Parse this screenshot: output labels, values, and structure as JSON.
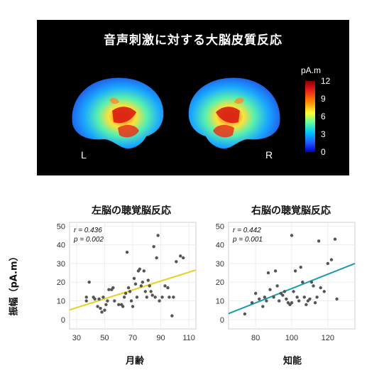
{
  "panel": {
    "title": "音声刺激に対する大脳皮質反応",
    "left_label": "L",
    "right_label": "R",
    "colorbar": {
      "unit": "pA.m",
      "ticks": [
        "12",
        "9",
        "6",
        "3",
        "0"
      ],
      "min": 0,
      "max": 12
    }
  },
  "chart_data": [
    {
      "type": "scatter",
      "title": "左脳の聴覚脳反応",
      "xlabel": "月齢",
      "ylabel": "振幅（pA.m）",
      "xlim": [
        25,
        115
      ],
      "ylim": [
        -5,
        52
      ],
      "xticks": [
        30,
        50,
        70,
        90,
        110
      ],
      "yticks": [
        0,
        10,
        20,
        30,
        40,
        50
      ],
      "stats": {
        "r": "r = 0.436",
        "p": "p = 0.002"
      },
      "line_color": "#e5d21f",
      "fit": {
        "x": [
          25,
          115
        ],
        "y": [
          5.2,
          26.5
        ]
      },
      "points": [
        [
          37,
          10
        ],
        [
          37,
          12
        ],
        [
          39,
          20
        ],
        [
          42,
          12
        ],
        [
          43,
          11
        ],
        [
          45,
          7
        ],
        [
          46,
          11
        ],
        [
          47,
          6
        ],
        [
          48,
          4
        ],
        [
          49,
          12
        ],
        [
          50,
          5
        ],
        [
          51,
          8
        ],
        [
          52,
          10
        ],
        [
          53,
          16
        ],
        [
          55,
          16
        ],
        [
          56,
          17
        ],
        [
          57,
          10
        ],
        [
          60,
          8
        ],
        [
          62,
          8
        ],
        [
          63,
          7
        ],
        [
          64,
          12
        ],
        [
          65,
          14
        ],
        [
          66,
          36
        ],
        [
          67,
          17
        ],
        [
          68,
          15
        ],
        [
          69,
          10
        ],
        [
          70,
          7
        ],
        [
          71,
          22
        ],
        [
          72,
          19
        ],
        [
          73,
          12
        ],
        [
          74,
          26
        ],
        [
          75,
          27
        ],
        [
          76,
          18
        ],
        [
          77,
          20
        ],
        [
          78,
          26
        ],
        [
          79,
          15
        ],
        [
          80,
          12
        ],
        [
          81,
          21
        ],
        [
          82,
          18
        ],
        [
          83,
          15
        ],
        [
          84,
          13
        ],
        [
          85,
          39
        ],
        [
          86,
          12
        ],
        [
          87,
          33
        ],
        [
          88,
          45
        ],
        [
          89,
          10
        ],
        [
          91,
          12
        ],
        [
          93,
          18
        ],
        [
          95,
          17
        ],
        [
          96,
          12
        ],
        [
          98,
          2
        ],
        [
          99,
          12
        ],
        [
          101,
          31
        ],
        [
          104,
          34
        ],
        [
          106,
          33
        ]
      ]
    },
    {
      "type": "scatter",
      "title": "右脳の聴覚脳反応",
      "xlabel": "知能",
      "ylabel": "",
      "xlim": [
        65,
        135
      ],
      "ylim": [
        -5,
        52
      ],
      "xticks": [
        80,
        100,
        120
      ],
      "yticks": [
        0,
        10,
        20,
        30,
        40,
        50
      ],
      "stats": {
        "r": "r = 0.442",
        "p": "p = 0.001"
      },
      "line_color": "#1a9ba8",
      "fit": {
        "x": [
          65,
          135
        ],
        "y": [
          3.2,
          30.0
        ]
      },
      "points": [
        [
          74,
          3
        ],
        [
          78,
          9
        ],
        [
          80,
          14
        ],
        [
          82,
          11
        ],
        [
          84,
          7
        ],
        [
          85,
          12
        ],
        [
          86,
          10
        ],
        [
          87,
          25
        ],
        [
          88,
          16
        ],
        [
          90,
          12
        ],
        [
          91,
          26
        ],
        [
          92,
          18
        ],
        [
          93,
          10
        ],
        [
          94,
          14
        ],
        [
          95,
          13
        ],
        [
          96,
          15
        ],
        [
          97,
          11
        ],
        [
          98,
          9
        ],
        [
          99,
          8
        ],
        [
          100,
          9
        ],
        [
          100,
          45
        ],
        [
          101,
          15
        ],
        [
          102,
          26
        ],
        [
          103,
          12
        ],
        [
          104,
          10
        ],
        [
          105,
          28
        ],
        [
          106,
          20
        ],
        [
          107,
          12
        ],
        [
          108,
          8
        ],
        [
          109,
          10
        ],
        [
          110,
          11
        ],
        [
          111,
          20
        ],
        [
          112,
          18
        ],
        [
          113,
          9
        ],
        [
          114,
          12
        ],
        [
          115,
          42
        ],
        [
          116,
          17
        ],
        [
          118,
          15
        ],
        [
          120,
          30
        ],
        [
          122,
          32
        ],
        [
          124,
          43
        ],
        [
          125,
          11
        ]
      ]
    }
  ]
}
